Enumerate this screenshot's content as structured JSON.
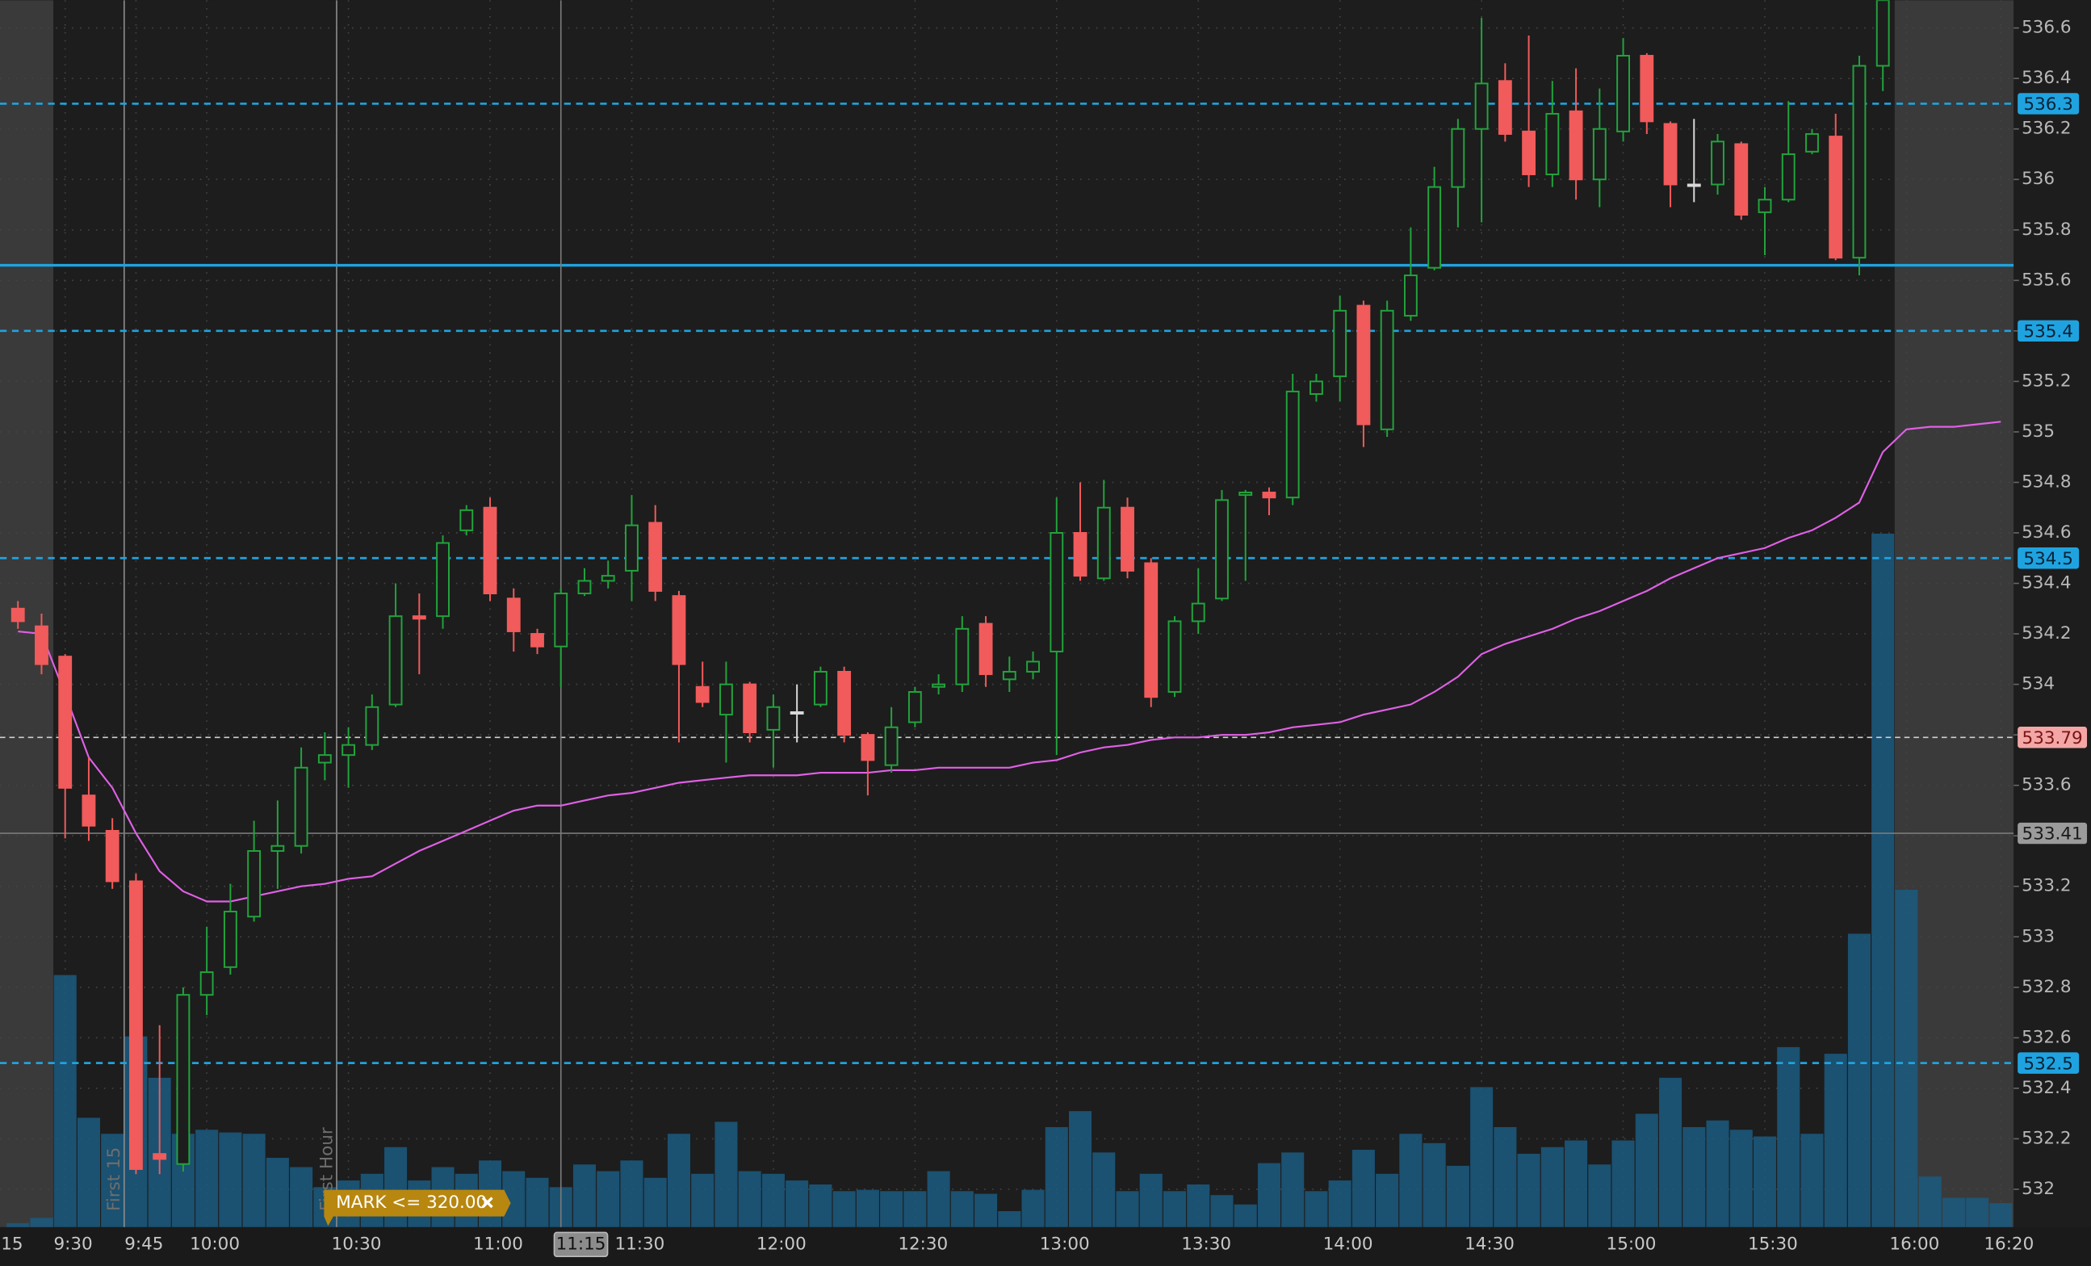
{
  "chart_data": {
    "type": "candlestick",
    "x": [
      560,
      565,
      570,
      575,
      580,
      585,
      590,
      595,
      600,
      605,
      610,
      615,
      620,
      625,
      630,
      635,
      640,
      645,
      650,
      655,
      660,
      665,
      670,
      675,
      680,
      685,
      690,
      695,
      700,
      705,
      710,
      715,
      720,
      725,
      730,
      735,
      740,
      745,
      750,
      755,
      760,
      765,
      770,
      775,
      780,
      785,
      790,
      795,
      800,
      805,
      810,
      815,
      820,
      825,
      830,
      835,
      840,
      845,
      850,
      855,
      860,
      865,
      870,
      875,
      880,
      885,
      890,
      895,
      900,
      905,
      910,
      915,
      920,
      925,
      930,
      935,
      940,
      945,
      950,
      955,
      960,
      965,
      970,
      975,
      980
    ],
    "xlim": [
      556.2,
      982.7
    ],
    "xticks": [
      {
        "value": 555,
        "label": "15"
      },
      {
        "value": 570,
        "label": "9:30"
      },
      {
        "value": 585,
        "label": "9:45"
      },
      {
        "value": 600,
        "label": "10:00"
      },
      {
        "value": 630,
        "label": "10:30"
      },
      {
        "value": 660,
        "label": "11:00"
      },
      {
        "value": 690,
        "label": "11:30"
      },
      {
        "value": 720,
        "label": "12:00"
      },
      {
        "value": 750,
        "label": "12:30"
      },
      {
        "value": 780,
        "label": "13:00"
      },
      {
        "value": 810,
        "label": "13:30"
      },
      {
        "value": 840,
        "label": "14:00"
      },
      {
        "value": 870,
        "label": "14:30"
      },
      {
        "value": 900,
        "label": "15:00"
      },
      {
        "value": 930,
        "label": "15:30"
      },
      {
        "value": 960,
        "label": "16:00"
      },
      {
        "value": 980,
        "label": "16:20"
      }
    ],
    "ylim": [
      531.85,
      536.71
    ],
    "yticks": [
      532,
      532.2,
      532.4,
      532.6,
      532.8,
      533,
      533.2,
      533.4,
      533.6,
      533.8,
      534,
      534.2,
      534.4,
      534.6,
      534.8,
      535,
      535.2,
      535.4,
      535.6,
      535.8,
      536,
      536.2,
      536.4,
      536.6
    ],
    "y2lim": [
      0,
      920
    ],
    "grid": true,
    "session": [
      567.5,
      957.5
    ],
    "candles": {
      "up_color": "#22a33c",
      "down_color": "#f15b5b",
      "flat_color": "#d8d8d8",
      "open": [
        534.3,
        534.23,
        534.11,
        533.56,
        533.42,
        533.22,
        532.14,
        532.1,
        532.77,
        532.88,
        533.08,
        533.34,
        533.36,
        533.69,
        533.72,
        533.76,
        533.92,
        534.27,
        534.27,
        534.61,
        534.7,
        534.34,
        534.2,
        534.15,
        534.36,
        534.41,
        534.45,
        534.64,
        534.35,
        533.99,
        533.88,
        534.0,
        533.82,
        533.89,
        533.92,
        534.05,
        533.8,
        533.68,
        533.85,
        533.99,
        534.0,
        534.24,
        534.02,
        534.05,
        534.13,
        534.6,
        534.42,
        534.7,
        534.48,
        533.97,
        534.25,
        534.34,
        534.75,
        534.76,
        534.74,
        535.15,
        535.22,
        535.5,
        535.01,
        535.46,
        535.65,
        535.97,
        536.2,
        536.39,
        536.19,
        536.02,
        536.27,
        536.0,
        536.19,
        536.49,
        536.22,
        535.98,
        535.98,
        536.14,
        535.87,
        535.92,
        536.11,
        536.17,
        535.69,
        536.45,
        null,
        null,
        null,
        null,
        null
      ],
      "high": [
        534.33,
        534.28,
        534.12,
        533.71,
        533.47,
        533.25,
        532.65,
        532.8,
        533.04,
        533.21,
        533.46,
        533.54,
        533.75,
        533.81,
        533.83,
        533.96,
        534.4,
        534.36,
        534.59,
        534.71,
        534.74,
        534.38,
        534.22,
        534.38,
        534.46,
        534.49,
        534.75,
        534.71,
        534.37,
        534.09,
        534.09,
        534.01,
        533.96,
        534.0,
        534.07,
        534.07,
        533.81,
        533.91,
        533.99,
        534.04,
        534.27,
        534.27,
        534.11,
        534.13,
        534.74,
        534.8,
        534.81,
        534.74,
        534.5,
        534.27,
        534.46,
        534.77,
        534.77,
        534.78,
        535.23,
        535.23,
        535.54,
        535.52,
        535.52,
        535.81,
        536.05,
        536.24,
        536.64,
        536.46,
        536.57,
        536.39,
        536.44,
        536.36,
        536.56,
        536.5,
        536.23,
        536.24,
        536.18,
        536.15,
        535.97,
        536.31,
        536.2,
        536.26,
        536.49,
        536.74,
        null,
        null,
        null,
        null,
        null
      ],
      "low": [
        534.22,
        534.04,
        533.39,
        533.38,
        533.19,
        532.06,
        532.06,
        532.07,
        532.69,
        532.85,
        533.06,
        533.19,
        533.33,
        533.62,
        533.59,
        533.74,
        533.91,
        534.04,
        534.22,
        534.59,
        534.33,
        534.13,
        534.12,
        533.99,
        534.35,
        534.38,
        534.33,
        534.33,
        533.77,
        533.91,
        533.69,
        533.77,
        533.67,
        533.77,
        533.91,
        533.77,
        533.56,
        533.65,
        533.83,
        533.96,
        533.97,
        533.99,
        533.97,
        534.02,
        533.72,
        534.41,
        534.41,
        534.42,
        533.91,
        533.95,
        534.2,
        534.33,
        534.41,
        534.67,
        534.71,
        535.12,
        535.12,
        534.94,
        534.98,
        535.44,
        535.64,
        535.81,
        535.83,
        536.15,
        535.97,
        535.97,
        535.92,
        535.89,
        536.15,
        536.18,
        535.89,
        535.91,
        535.94,
        535.84,
        535.7,
        535.91,
        536.1,
        535.68,
        535.62,
        536.35,
        null,
        null,
        null,
        null,
        null
      ],
      "close": [
        534.25,
        534.08,
        533.59,
        533.44,
        533.22,
        532.08,
        532.12,
        532.77,
        532.86,
        533.1,
        533.34,
        533.36,
        533.67,
        533.72,
        533.76,
        533.91,
        534.27,
        534.26,
        534.56,
        534.69,
        534.36,
        534.21,
        534.15,
        534.36,
        534.41,
        534.43,
        534.63,
        534.37,
        534.08,
        533.93,
        534.0,
        533.81,
        533.91,
        533.89,
        534.05,
        533.8,
        533.7,
        533.83,
        533.97,
        534.0,
        534.22,
        534.04,
        534.05,
        534.09,
        534.6,
        534.43,
        534.7,
        534.45,
        533.95,
        534.25,
        534.32,
        534.73,
        534.76,
        534.74,
        535.16,
        535.2,
        535.48,
        535.03,
        535.48,
        535.62,
        535.97,
        536.2,
        536.38,
        536.18,
        536.02,
        536.26,
        536.0,
        536.2,
        536.49,
        536.23,
        535.98,
        535.98,
        536.15,
        535.86,
        535.92,
        536.1,
        536.18,
        535.69,
        536.45,
        536.71,
        null,
        null,
        null,
        null,
        null
      ]
    },
    "vwap": {
      "color": "#e060e6",
      "values": [
        534.21,
        534.2,
        533.96,
        533.71,
        533.59,
        533.41,
        533.26,
        533.18,
        533.14,
        533.14,
        533.16,
        533.18,
        533.2,
        533.21,
        533.23,
        533.24,
        533.29,
        533.34,
        533.38,
        533.42,
        533.46,
        533.5,
        533.52,
        533.52,
        533.54,
        533.56,
        533.57,
        533.59,
        533.61,
        533.62,
        533.63,
        533.64,
        533.64,
        533.64,
        533.65,
        533.65,
        533.65,
        533.66,
        533.66,
        533.67,
        533.67,
        533.67,
        533.67,
        533.69,
        533.7,
        533.73,
        533.75,
        533.76,
        533.78,
        533.79,
        533.79,
        533.8,
        533.8,
        533.81,
        533.83,
        533.84,
        533.85,
        533.88,
        533.9,
        533.92,
        533.97,
        534.03,
        534.12,
        534.16,
        534.19,
        534.22,
        534.26,
        534.29,
        534.33,
        534.37,
        534.42,
        534.46,
        534.5,
        534.52,
        534.54,
        534.58,
        534.61,
        534.66,
        534.72,
        534.92,
        535.01,
        535.02,
        535.02,
        535.03,
        535.04
      ]
    },
    "volume": {
      "color": "#1b5a80",
      "axis": "y2",
      "values": [
        3,
        7,
        189,
        82,
        70,
        143,
        112,
        70,
        73,
        71,
        70,
        52,
        45,
        30,
        35,
        40,
        60,
        35,
        45,
        40,
        50,
        42,
        37,
        30,
        47,
        42,
        50,
        37,
        70,
        40,
        79,
        42,
        40,
        35,
        32,
        27,
        28,
        27,
        27,
        42,
        27,
        25,
        12,
        28,
        75,
        87,
        56,
        27,
        40,
        27,
        32,
        24,
        17,
        48,
        56,
        27,
        35,
        58,
        40,
        70,
        63,
        46,
        105,
        75,
        55,
        60,
        65,
        47,
        65,
        85,
        112,
        75,
        80,
        73,
        68,
        135,
        70,
        130,
        220,
        520,
        253,
        38,
        22,
        22,
        18
      ]
    },
    "price_lines": [
      536.3,
      535.4,
      534.5,
      532.5
    ],
    "price_line_color": "#1fa3e0",
    "level_line": 535.66,
    "last_price": 533.79,
    "crosshair": {
      "x": {
        "value": 675,
        "label": "11:15"
      },
      "y": 533.41
    },
    "markers": [
      {
        "x": 582.5,
        "label": "First 15"
      },
      {
        "x": 627.5,
        "label": "First Hour"
      }
    ],
    "alert": "MARK <= 320.00"
  }
}
